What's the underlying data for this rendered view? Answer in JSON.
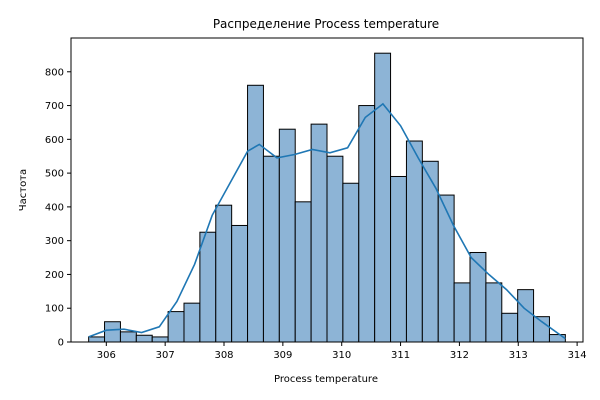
{
  "chart_data": {
    "type": "bar",
    "title": "Распределение Process temperature",
    "xlabel": "Process temperature",
    "ylabel": "Частота",
    "xlim": [
      305.4,
      314.1
    ],
    "ylim": [
      0,
      900
    ],
    "xticks": [
      306,
      307,
      308,
      309,
      310,
      311,
      312,
      313,
      314
    ],
    "yticks": [
      0,
      100,
      200,
      300,
      400,
      500,
      600,
      700,
      800
    ],
    "grid": false,
    "bar_color": "#8db4d6",
    "bar_edge_color": "#000000",
    "kde_color": "#1f77b4",
    "bin_edges": [
      305.7,
      305.97,
      306.24,
      306.51,
      306.78,
      307.05,
      307.32,
      307.59,
      307.86,
      308.13,
      308.4,
      308.67,
      308.94,
      309.21,
      309.48,
      309.75,
      310.02,
      310.29,
      310.56,
      310.83,
      311.1,
      311.37,
      311.64,
      311.91,
      312.18,
      312.45,
      312.72,
      312.99,
      313.26,
      313.53,
      313.8
    ],
    "counts": [
      15,
      60,
      30,
      20,
      15,
      90,
      115,
      325,
      405,
      345,
      760,
      550,
      630,
      415,
      645,
      550,
      470,
      700,
      855,
      490,
      595,
      535,
      435,
      175,
      265,
      175,
      85,
      155,
      75,
      22
    ],
    "kde_x": [
      305.7,
      306.0,
      306.3,
      306.6,
      306.9,
      307.2,
      307.5,
      307.8,
      308.1,
      308.4,
      308.6,
      308.9,
      309.2,
      309.5,
      309.8,
      310.1,
      310.4,
      310.7,
      311.0,
      311.3,
      311.6,
      311.9,
      312.2,
      312.5,
      312.8,
      313.1,
      313.4,
      313.8
    ],
    "kde_y": [
      15,
      35,
      38,
      28,
      45,
      120,
      230,
      375,
      470,
      565,
      585,
      545,
      555,
      570,
      560,
      575,
      665,
      705,
      640,
      545,
      455,
      345,
      250,
      200,
      155,
      100,
      60,
      10
    ]
  }
}
